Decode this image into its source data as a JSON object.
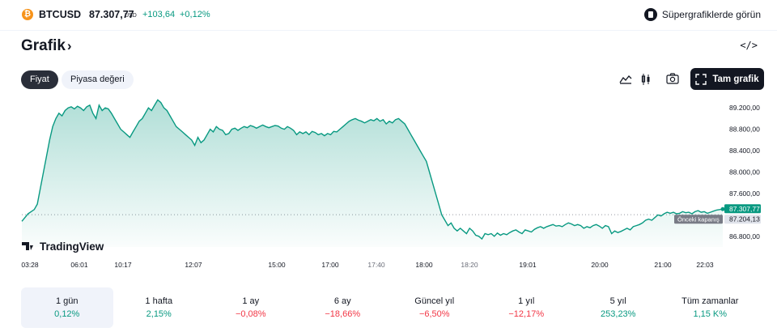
{
  "header": {
    "symbol": "BTCUSD",
    "price": "87.307,77",
    "currency": "USD",
    "change": "+103,64",
    "change_percent": "+0,12%",
    "supercharts_label": "Süpergrafiklerde görün",
    "logo_letter": "₿"
  },
  "section": {
    "title": "Grafik",
    "chevron": "›",
    "embed_label": "</>"
  },
  "tabs": [
    {
      "label": "Fiyat",
      "active": true
    },
    {
      "label": "Piyasa değeri",
      "active": false
    }
  ],
  "toolbar": {
    "full_chart_label": "Tam grafik"
  },
  "chart_data": {
    "type": "area",
    "watermark": "TradingView",
    "ylim": [
      86600,
      89400
    ],
    "y_ticks": [
      "89.200,00",
      "88.800,00",
      "88.400,00",
      "88.000,00",
      "87.600,00",
      "86.800,00"
    ],
    "y_tick_values": [
      89200,
      88800,
      88400,
      88000,
      87600,
      86800
    ],
    "x_ticks": [
      "03:28",
      "06:01",
      "10:17",
      "12:07",
      "15:00",
      "17:00",
      "17:40",
      "18:00",
      "18:20",
      "19:01",
      "20:00",
      "21:00",
      "22:03"
    ],
    "x_tick_bold": [
      true,
      true,
      true,
      true,
      true,
      true,
      false,
      true,
      false,
      true,
      true,
      true,
      true
    ],
    "last_price_label": "87.307,77",
    "last_price": 87307.77,
    "prev_close_label": "Önceki kapanış",
    "prev_close_value_label": "87.204,13",
    "prev_close": 87204.13,
    "series": [
      {
        "values": [
          87080,
          87150,
          87220,
          87260,
          87300,
          87400,
          87700,
          88000,
          88300,
          88600,
          88850,
          89000,
          89100,
          89050,
          89150,
          89200,
          89220,
          89180,
          89230,
          89200,
          89150,
          89220,
          89250,
          89100,
          89000,
          89250,
          89150,
          89200,
          89180,
          89100,
          89000,
          88900,
          88800,
          88750,
          88700,
          88650,
          88750,
          88850,
          88950,
          89000,
          89100,
          89200,
          89150,
          89250,
          89350,
          89300,
          89200,
          89150,
          89050,
          88950,
          88850,
          88800,
          88750,
          88700,
          88650,
          88600,
          88500,
          88650,
          88550,
          88600,
          88700,
          88800,
          88750,
          88850,
          88800,
          88780,
          88700,
          88720,
          88800,
          88820,
          88780,
          88820,
          88850,
          88830,
          88870,
          88850,
          88820,
          88850,
          88880,
          88850,
          88830,
          88850,
          88870,
          88860,
          88820,
          88800,
          88850,
          88820,
          88780,
          88700,
          88750,
          88720,
          88750,
          88700,
          88760,
          88740,
          88700,
          88720,
          88680,
          88720,
          88700,
          88760,
          88750,
          88800,
          88850,
          88900,
          88950,
          88980,
          89000,
          88970,
          88950,
          88920,
          88950,
          88980,
          88960,
          89000,
          88950,
          88980,
          88900,
          88950,
          88920,
          88980,
          89000,
          88950,
          88900,
          88800,
          88700,
          88600,
          88500,
          88400,
          88300,
          88200,
          88000,
          87800,
          87600,
          87400,
          87200,
          87100,
          87000,
          87050,
          86950,
          86900,
          86950,
          86900,
          86850,
          86950,
          86900,
          86820,
          86800,
          86750,
          86850,
          86830,
          86850,
          86800,
          86860,
          86820,
          86850,
          86830,
          86870,
          86900,
          86920,
          86880,
          86850,
          86920,
          86900,
          86880,
          86930,
          86960,
          86980,
          86950,
          86980,
          87000,
          87020,
          86990,
          87000,
          86980,
          87020,
          87050,
          87030,
          87000,
          87020,
          87000,
          86950,
          86980,
          86960,
          87000,
          87020,
          86990,
          86950,
          87000,
          86980,
          86850,
          86900,
          86870,
          86890,
          86920,
          86950,
          86920,
          86980,
          87000,
          87020,
          87050,
          87100,
          87120,
          87100,
          87150,
          87200,
          87180,
          87220,
          87250,
          87230,
          87250,
          87220,
          87230,
          87260,
          87240,
          87250,
          87220,
          87260,
          87280,
          87250,
          87260,
          87230,
          87250,
          87270,
          87290,
          87300,
          87308
        ]
      }
    ]
  },
  "periods": [
    {
      "label": "1 gün",
      "value": "0,12%",
      "trend": "up",
      "selected": true
    },
    {
      "label": "1 hafta",
      "value": "2,15%",
      "trend": "up",
      "selected": false
    },
    {
      "label": "1 ay",
      "value": "−0,08%",
      "trend": "down",
      "selected": false
    },
    {
      "label": "6 ay",
      "value": "−18,66%",
      "trend": "down",
      "selected": false
    },
    {
      "label": "Güncel yıl",
      "value": "−6,50%",
      "trend": "down",
      "selected": false
    },
    {
      "label": "1 yıl",
      "value": "−12,17%",
      "trend": "down",
      "selected": false
    },
    {
      "label": "5 yıl",
      "value": "253,23%",
      "trend": "up",
      "selected": false
    },
    {
      "label": "Tüm zamanlar",
      "value": "1,15 K%",
      "trend": "up",
      "selected": false
    }
  ],
  "colors": {
    "up": "#089981",
    "down": "#f23645",
    "line": "#089981",
    "active_pill": "#2a2e39",
    "brand": "#f7931a"
  }
}
